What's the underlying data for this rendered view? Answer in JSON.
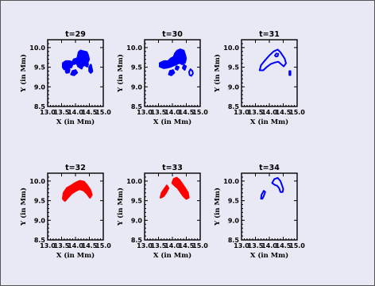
{
  "chart_data": [
    {
      "type": "scatter",
      "title": "t=29",
      "style": "filled",
      "color": "#0000ff",
      "xlabel": "X (in Mm)",
      "ylabel": "Y (in Mm)",
      "xlim": [
        13.0,
        15.0
      ],
      "ylim": [
        8.5,
        10.2
      ],
      "xticks": [
        "13.0",
        "13.5",
        "14.0",
        "14.5",
        "15.0"
      ],
      "yticks": [
        "8.5",
        "9.0",
        "9.5",
        "10.0"
      ],
      "regions": [
        [
          [
            13.55,
            9.5
          ],
          [
            13.55,
            9.6
          ],
          [
            13.65,
            9.65
          ],
          [
            13.8,
            9.65
          ],
          [
            13.9,
            9.6
          ],
          [
            13.85,
            9.5
          ],
          [
            13.7,
            9.48
          ],
          [
            13.6,
            9.45
          ]
        ],
        [
          [
            13.88,
            9.62
          ],
          [
            13.95,
            9.7
          ],
          [
            14.05,
            9.72
          ],
          [
            14.1,
            9.66
          ],
          [
            14.02,
            9.6
          ],
          [
            13.92,
            9.58
          ]
        ],
        [
          [
            13.85,
            9.32
          ],
          [
            13.9,
            9.4
          ],
          [
            14.0,
            9.42
          ],
          [
            14.05,
            9.36
          ],
          [
            13.95,
            9.3
          ]
        ],
        [
          [
            13.65,
            9.4
          ],
          [
            13.7,
            9.45
          ],
          [
            13.78,
            9.44
          ],
          [
            13.76,
            9.37
          ],
          [
            13.68,
            9.36
          ]
        ],
        [
          [
            14.05,
            9.6
          ],
          [
            14.08,
            9.75
          ],
          [
            14.12,
            9.88
          ],
          [
            14.18,
            9.92
          ],
          [
            14.28,
            9.9
          ],
          [
            14.4,
            9.88
          ],
          [
            14.45,
            9.8
          ],
          [
            14.48,
            9.7
          ],
          [
            14.42,
            9.6
          ],
          [
            14.3,
            9.55
          ],
          [
            14.2,
            9.5
          ],
          [
            14.1,
            9.52
          ]
        ],
        [
          [
            14.15,
            9.5
          ],
          [
            14.18,
            9.55
          ],
          [
            14.25,
            9.54
          ],
          [
            14.22,
            9.47
          ]
        ],
        [
          [
            14.35,
            9.55
          ],
          [
            14.38,
            9.6
          ],
          [
            14.45,
            9.58
          ],
          [
            14.42,
            9.52
          ]
        ],
        [
          [
            14.5,
            9.5
          ],
          [
            14.55,
            9.56
          ],
          [
            14.6,
            9.4
          ],
          [
            14.55,
            9.36
          ],
          [
            14.5,
            9.4
          ]
        ]
      ]
    },
    {
      "type": "scatter",
      "title": "t=30",
      "style": "mixed",
      "color": "#0000ff",
      "xlabel": "X (in Mm)",
      "ylabel": "Y (in Mm)",
      "xlim": [
        13.0,
        15.0
      ],
      "ylim": [
        8.5,
        10.2
      ],
      "xticks": [
        "13.0",
        "13.5",
        "14.0",
        "14.5",
        "15.0"
      ],
      "yticks": [
        "8.5",
        "9.0",
        "9.5",
        "10.0"
      ],
      "regions": [
        [
          [
            13.55,
            9.52
          ],
          [
            13.55,
            9.6
          ],
          [
            13.7,
            9.65
          ],
          [
            13.85,
            9.65
          ],
          [
            13.95,
            9.72
          ],
          [
            14.05,
            9.76
          ],
          [
            14.1,
            9.85
          ],
          [
            14.18,
            9.92
          ],
          [
            14.28,
            9.95
          ],
          [
            14.4,
            9.92
          ],
          [
            14.45,
            9.82
          ],
          [
            14.48,
            9.72
          ],
          [
            14.45,
            9.62
          ],
          [
            14.35,
            9.58
          ],
          [
            14.25,
            9.62
          ],
          [
            14.15,
            9.58
          ],
          [
            14.05,
            9.55
          ],
          [
            13.95,
            9.52
          ],
          [
            13.85,
            9.5
          ],
          [
            13.7,
            9.48
          ]
        ],
        [
          [
            13.88,
            9.32
          ],
          [
            13.92,
            9.4
          ],
          [
            14.02,
            9.42
          ],
          [
            14.06,
            9.36
          ],
          [
            13.96,
            9.3
          ]
        ],
        [
          [
            14.12,
            9.46
          ],
          [
            14.15,
            9.52
          ],
          [
            14.22,
            9.5
          ],
          [
            14.18,
            9.44
          ]
        ],
        [
          [
            14.38,
            9.48
          ],
          [
            14.42,
            9.55
          ],
          [
            14.48,
            9.52
          ],
          [
            14.44,
            9.44
          ]
        ]
      ],
      "outlines": [
        [
          [
            14.62,
            9.3
          ],
          [
            14.6,
            9.38
          ],
          [
            14.65,
            9.45
          ],
          [
            14.72,
            9.4
          ],
          [
            14.74,
            9.34
          ],
          [
            14.68,
            9.28
          ]
        ]
      ]
    },
    {
      "type": "scatter",
      "title": "t=31",
      "style": "outline",
      "color": "#0000ff",
      "xlabel": "X (in Mm)",
      "ylabel": "Y (in Mm)",
      "xlim": [
        13.0,
        15.0
      ],
      "ylim": [
        8.5,
        10.2
      ],
      "xticks": [
        "13.0",
        "13.5",
        "14.0",
        "14.5",
        "15.0"
      ],
      "yticks": [
        "8.5",
        "9.0",
        "9.5",
        "10.0"
      ],
      "regions": [],
      "outlines": [
        [
          [
            13.65,
            9.42
          ],
          [
            13.7,
            9.55
          ],
          [
            13.85,
            9.68
          ],
          [
            14.0,
            9.8
          ],
          [
            14.15,
            9.9
          ],
          [
            14.3,
            9.95
          ],
          [
            14.4,
            9.88
          ],
          [
            14.55,
            9.72
          ],
          [
            14.6,
            9.6
          ],
          [
            14.52,
            9.52
          ],
          [
            14.42,
            9.58
          ],
          [
            14.32,
            9.64
          ],
          [
            14.2,
            9.62
          ],
          [
            14.05,
            9.58
          ],
          [
            13.9,
            9.5
          ],
          [
            13.78,
            9.42
          ]
        ],
        [
          [
            14.2,
            9.8
          ],
          [
            14.25,
            9.85
          ],
          [
            14.32,
            9.84
          ],
          [
            14.3,
            9.78
          ],
          [
            14.24,
            9.77
          ]
        ],
        [
          [
            14.72,
            9.3
          ],
          [
            14.72,
            9.4
          ],
          [
            14.76,
            9.4
          ],
          [
            14.76,
            9.3
          ]
        ]
      ]
    },
    {
      "type": "scatter",
      "title": "t=32",
      "style": "filled",
      "color": "#ff0000",
      "xlabel": "X (in Mm)",
      "ylabel": "Y (in Mm)",
      "xlim": [
        13.0,
        15.0
      ],
      "ylim": [
        8.5,
        10.2
      ],
      "xticks": [
        "13.0",
        "13.5",
        "14.0",
        "14.5",
        "15.0"
      ],
      "yticks": [
        "8.5",
        "9.0",
        "9.5",
        "10.0"
      ],
      "regions": [
        [
          [
            13.55,
            9.55
          ],
          [
            13.58,
            9.7
          ],
          [
            13.7,
            9.82
          ],
          [
            13.85,
            9.88
          ],
          [
            14.0,
            9.95
          ],
          [
            14.15,
            10.0
          ],
          [
            14.3,
            9.98
          ],
          [
            14.4,
            9.9
          ],
          [
            14.52,
            9.78
          ],
          [
            14.58,
            9.65
          ],
          [
            14.52,
            9.58
          ],
          [
            14.42,
            9.68
          ],
          [
            14.3,
            9.76
          ],
          [
            14.15,
            9.8
          ],
          [
            14.0,
            9.75
          ],
          [
            13.85,
            9.68
          ],
          [
            13.72,
            9.58
          ],
          [
            13.62,
            9.5
          ]
        ]
      ]
    },
    {
      "type": "scatter",
      "title": "t=33",
      "style": "filled",
      "color": "#ff0000",
      "xlabel": "X (in Mm)",
      "ylabel": "Y (in Mm)",
      "xlim": [
        13.0,
        15.0
      ],
      "ylim": [
        8.5,
        10.2
      ],
      "xticks": [
        "13.0",
        "13.5",
        "14.0",
        "14.5",
        "15.0"
      ],
      "yticks": [
        "8.5",
        "9.0",
        "9.5",
        "10.0"
      ],
      "regions": [
        [
          [
            13.58,
            9.58
          ],
          [
            13.62,
            9.7
          ],
          [
            13.72,
            9.8
          ],
          [
            13.8,
            9.88
          ],
          [
            13.85,
            9.82
          ],
          [
            13.78,
            9.72
          ],
          [
            13.68,
            9.62
          ]
        ],
        [
          [
            14.0,
            9.95
          ],
          [
            14.05,
            10.05
          ],
          [
            14.15,
            10.08
          ],
          [
            14.25,
            10.02
          ],
          [
            14.35,
            9.92
          ],
          [
            14.45,
            9.82
          ],
          [
            14.55,
            9.7
          ],
          [
            14.58,
            9.58
          ],
          [
            14.5,
            9.55
          ],
          [
            14.4,
            9.62
          ],
          [
            14.3,
            9.72
          ],
          [
            14.2,
            9.82
          ],
          [
            14.1,
            9.88
          ]
        ]
      ]
    },
    {
      "type": "scatter",
      "title": "t=34",
      "style": "outline",
      "color": "#0000ff",
      "xlabel": "X (in Mm)",
      "ylabel": "Y (in Mm)",
      "xlim": [
        13.0,
        15.0
      ],
      "ylim": [
        8.5,
        10.2
      ],
      "xticks": [
        "13.0",
        "13.5",
        "14.0",
        "14.5",
        "15.0"
      ],
      "yticks": [
        "8.5",
        "9.0",
        "9.5",
        "10.0"
      ],
      "regions": [],
      "outlines": [
        [
          [
            13.7,
            9.55
          ],
          [
            13.72,
            9.65
          ],
          [
            13.8,
            9.75
          ],
          [
            13.85,
            9.72
          ],
          [
            13.8,
            9.62
          ],
          [
            13.75,
            9.55
          ]
        ],
        [
          [
            14.1,
            9.95
          ],
          [
            14.18,
            10.05
          ],
          [
            14.3,
            10.08
          ],
          [
            14.4,
            10.0
          ],
          [
            14.45,
            9.9
          ],
          [
            14.5,
            9.8
          ],
          [
            14.48,
            9.72
          ],
          [
            14.4,
            9.72
          ],
          [
            14.35,
            9.82
          ],
          [
            14.28,
            9.88
          ],
          [
            14.2,
            9.9
          ]
        ]
      ]
    }
  ]
}
